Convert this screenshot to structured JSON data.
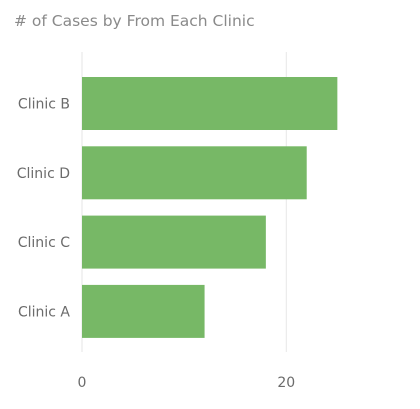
{
  "chart_data": {
    "type": "bar",
    "orientation": "horizontal",
    "title": "# of Cases by From Each Clinic",
    "categories": [
      "Clinic B",
      "Clinic D",
      "Clinic C",
      "Clinic A"
    ],
    "values": [
      25,
      22,
      18,
      12
    ],
    "xlabel": "",
    "ylabel": "",
    "xlim": [
      0,
      28
    ],
    "x_ticks": [
      0,
      20
    ],
    "grid": true,
    "legend": "none",
    "colors": {
      "bar": "#77b866",
      "grid": "#e6e6e6",
      "tick_text": "#6b6b6b",
      "title": "#8a8a8a"
    }
  }
}
